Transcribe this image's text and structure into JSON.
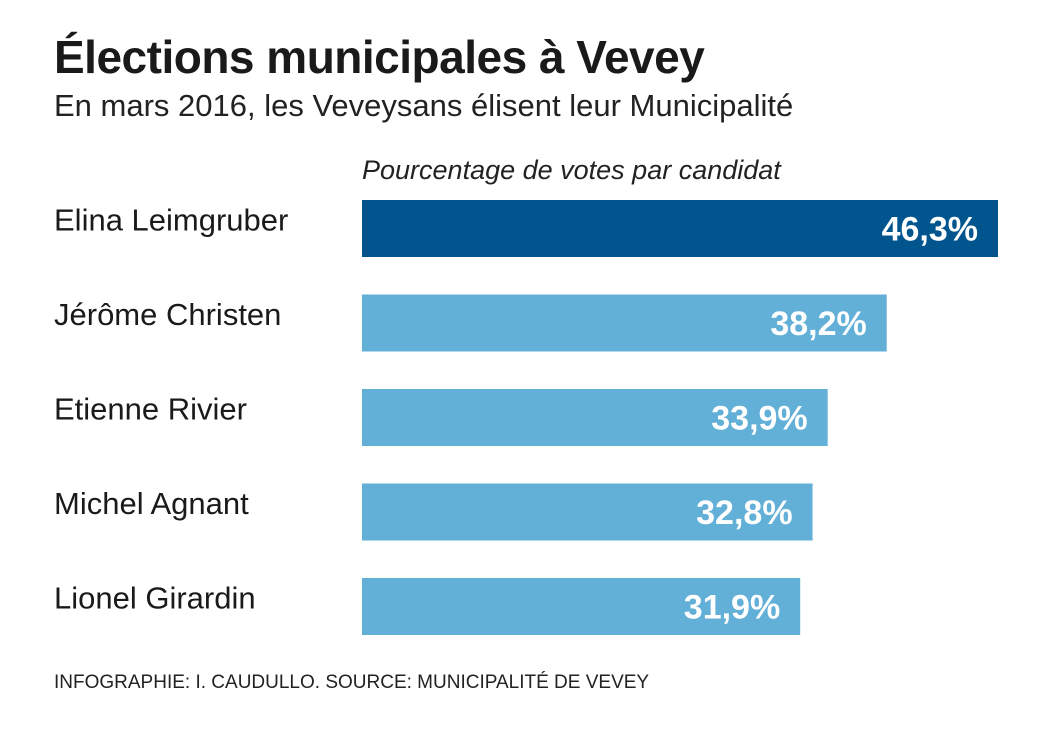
{
  "header": {
    "title": "Élections municipales à Vevey",
    "subtitle": "En mars 2016, les Veveysans élisent leur Municipalité"
  },
  "footer": {
    "credit": "INFOGRAPHIE: I. CAUDULLO. SOURCE: MUNICIPALITÉ DE VEVEY"
  },
  "colors": {
    "highlight_bar": "#00558f",
    "default_bar": "#62afd7"
  },
  "chart_data": {
    "type": "bar",
    "orientation": "horizontal",
    "title": "Élections municipales à Vevey",
    "subtitle": "En mars 2016, les Veveysans élisent leur Municipalité",
    "axis_title": "Pourcentage de votes par candidat",
    "categories": [
      "Elina Leimgruber",
      "Jérôme Christen",
      "Etienne Rivier",
      "Michel Agnant",
      "Lionel Girardin"
    ],
    "values": [
      46.3,
      38.2,
      33.9,
      32.8,
      31.9
    ],
    "data_labels": [
      "46,3%",
      "38,2%",
      "33,9%",
      "32,8%",
      "31,9%"
    ],
    "highlight_index": 0,
    "unit": "%",
    "xlim": [
      0,
      46.3
    ],
    "grid": false,
    "legend": "none"
  }
}
